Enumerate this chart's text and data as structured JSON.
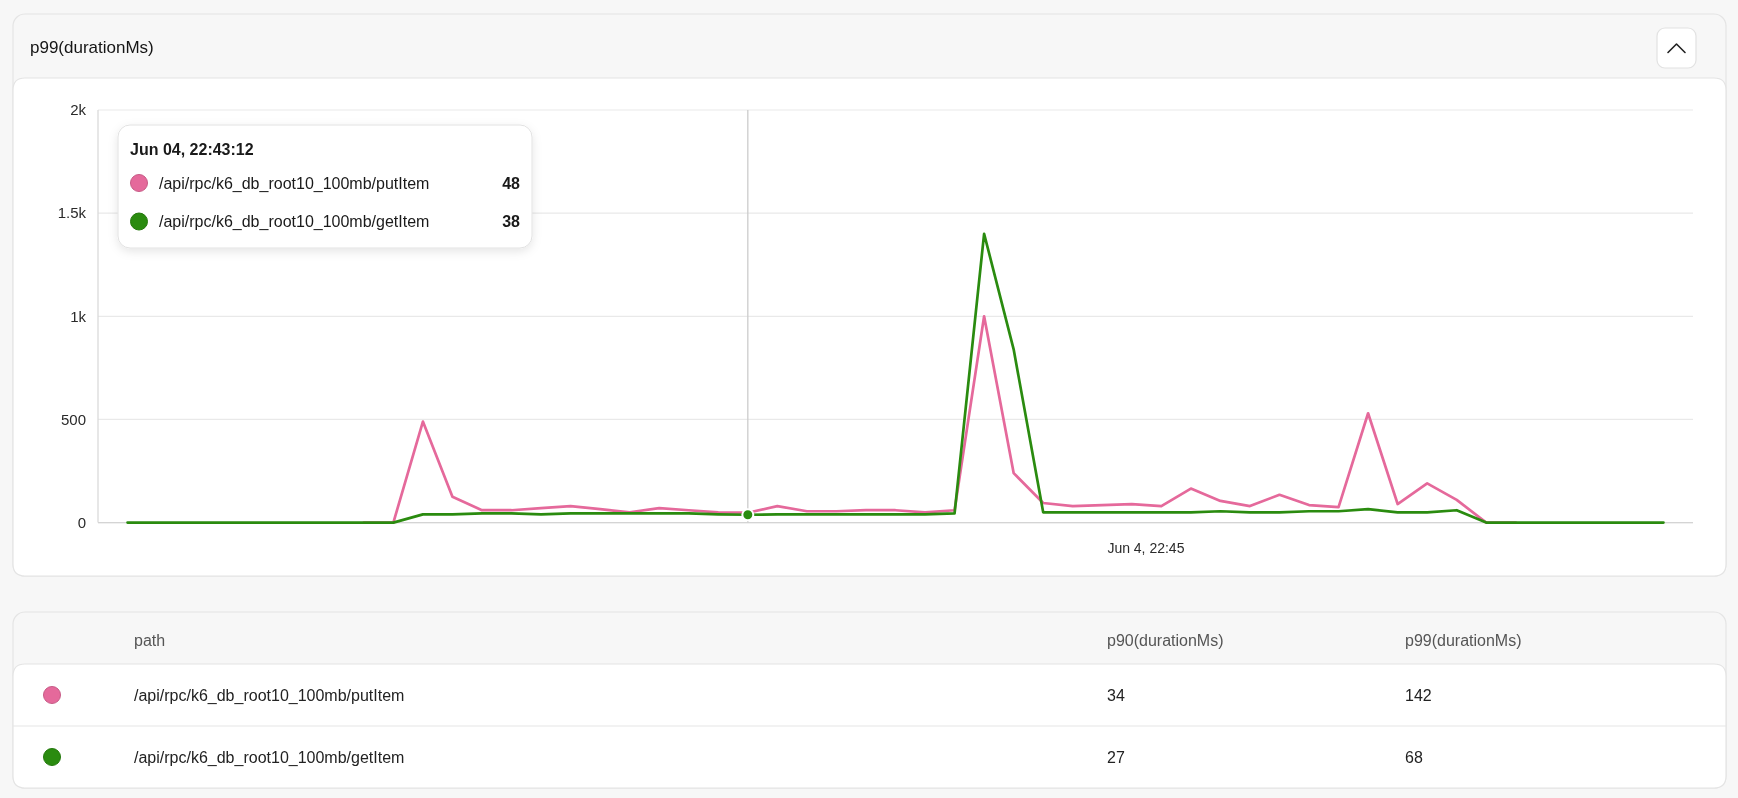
{
  "chart_data": [
    {
      "type": "line",
      "title": "p99(durationMs)",
      "legend": "top left",
      "legend_title": "Jun 04, 22:43:12",
      "annotations": [
        "48",
        "38",
        "Jun 4, 22:45"
      ],
      "categories": [
        null,
        null,
        null,
        null,
        null,
        null,
        null,
        null,
        null,
        null,
        null,
        null,
        null,
        null,
        null,
        null,
        null,
        null,
        null,
        null,
        null,
        null,
        null,
        null,
        null,
        null,
        null,
        null,
        null,
        null,
        null,
        null,
        null,
        null,
        null,
        null,
        null,
        null,
        null,
        null,
        null,
        null,
        null,
        null,
        null,
        null,
        null,
        null,
        null,
        null,
        null,
        null,
        null
      ],
      "series": [
        {
          "name": "/api/rpc/k6_db_root10_100mb/putItem",
          "color": "#e5699b",
          "values": [
            null,
            null,
            null,
            null,
            null,
            null,
            null,
            null,
            0,
            0,
            490,
            125,
            60,
            60,
            70,
            80,
            65,
            50,
            70,
            60,
            50,
            48,
            80,
            55,
            55,
            60,
            60,
            50,
            60,
            1000,
            240,
            95,
            80,
            85,
            90,
            80,
            165,
            105,
            80,
            135,
            85,
            75,
            530,
            90,
            190,
            110,
            0,
            0,
            null,
            null,
            null,
            null,
            null
          ]
        },
        {
          "name": "/api/rpc/k6_db_root10_100mb/getItem",
          "color": "#2a8b0f",
          "values": [
            0,
            0,
            0,
            0,
            0,
            0,
            0,
            0,
            0,
            0,
            40,
            40,
            45,
            45,
            40,
            45,
            45,
            45,
            45,
            45,
            40,
            38,
            40,
            40,
            40,
            40,
            40,
            40,
            45,
            1400,
            840,
            50,
            50,
            50,
            50,
            50,
            50,
            55,
            50,
            50,
            55,
            55,
            65,
            50,
            50,
            60,
            0,
            0,
            0,
            0,
            0,
            0,
            0
          ]
        },
        {
          "type": "scatter",
          "color": "#2a8b0f",
          "values": [
            null,
            null,
            null,
            null,
            null,
            null,
            null,
            null,
            null,
            null,
            null,
            null,
            null,
            null,
            null,
            null,
            null,
            null,
            null,
            null,
            null,
            38,
            null,
            null,
            null,
            null,
            null,
            null,
            null,
            null,
            null,
            null,
            null,
            null,
            null,
            null,
            null,
            null,
            null,
            null,
            null,
            null,
            null,
            null,
            null,
            null,
            null,
            null,
            null,
            null,
            null,
            null,
            null
          ]
        }
      ],
      "ylim": [
        0,
        2000
      ],
      "yticks": [
        {
          "value": 0,
          "label": "0"
        },
        {
          "value": 500,
          "label": "500"
        },
        {
          "value": 1000,
          "label": "1k"
        },
        {
          "value": 1500,
          "label": "1.5k"
        },
        {
          "value": 2000,
          "label": "2k"
        }
      ],
      "grid": "y"
    },
    {
      "type": "other",
      "annotations": [
        "path",
        "p90(durationMs)",
        "p99(durationMs)",
        "/api/rpc/k6_db_root10_100mb/putItem",
        "34",
        "142",
        "/api/rpc/k6_db_root10_100mb/getItem",
        "27",
        "68"
      ]
    }
  ]
}
